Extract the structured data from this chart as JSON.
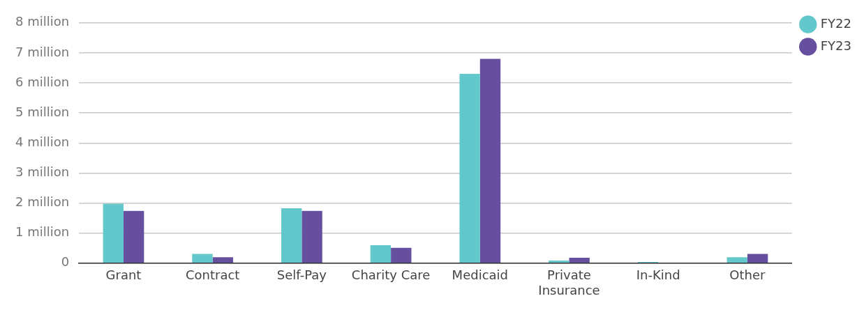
{
  "chart_data": {
    "type": "bar",
    "categories": [
      "Grant",
      "Contract",
      "Self-Pay",
      "Charity Care",
      "Medicaid",
      "Private Insurance",
      "In-Kind",
      "Other"
    ],
    "series": [
      {
        "name": "FY22",
        "color": "#62c8cc",
        "values": [
          1.98,
          0.31,
          1.83,
          0.6,
          6.3,
          0.09,
          0.04,
          0.2
        ]
      },
      {
        "name": "FY23",
        "color": "#664f9f",
        "values": [
          1.74,
          0.2,
          1.74,
          0.51,
          6.8,
          0.18,
          0.02,
          0.31
        ]
      }
    ],
    "ylim": [
      0,
      8
    ],
    "yticks": [
      {
        "value": 0,
        "label": "0"
      },
      {
        "value": 1,
        "label": "1 million"
      },
      {
        "value": 2,
        "label": "2 million"
      },
      {
        "value": 3,
        "label": "3 million"
      },
      {
        "value": 4,
        "label": "4 million"
      },
      {
        "value": 5,
        "label": "5 million"
      },
      {
        "value": 6,
        "label": "6 million"
      },
      {
        "value": 7,
        "label": "7 million"
      },
      {
        "value": 8,
        "label": "8 million"
      }
    ],
    "grid": "y",
    "legend": "top right",
    "marker": "circle"
  }
}
